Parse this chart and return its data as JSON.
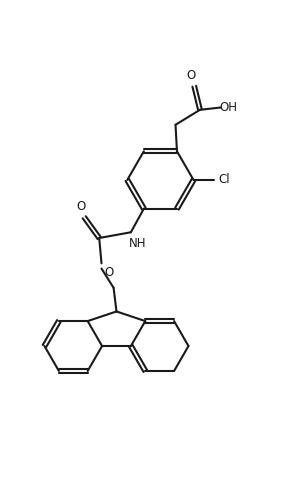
{
  "bg_color": "#ffffff",
  "line_color": "#1a1a1a",
  "line_width": 1.5,
  "figsize": [
    2.92,
    4.78
  ],
  "dpi": 100,
  "font_size": 8.5,
  "text_color": "#1a1a1a",
  "xlim": [
    0,
    10
  ],
  "ylim": [
    0,
    16.5
  ]
}
